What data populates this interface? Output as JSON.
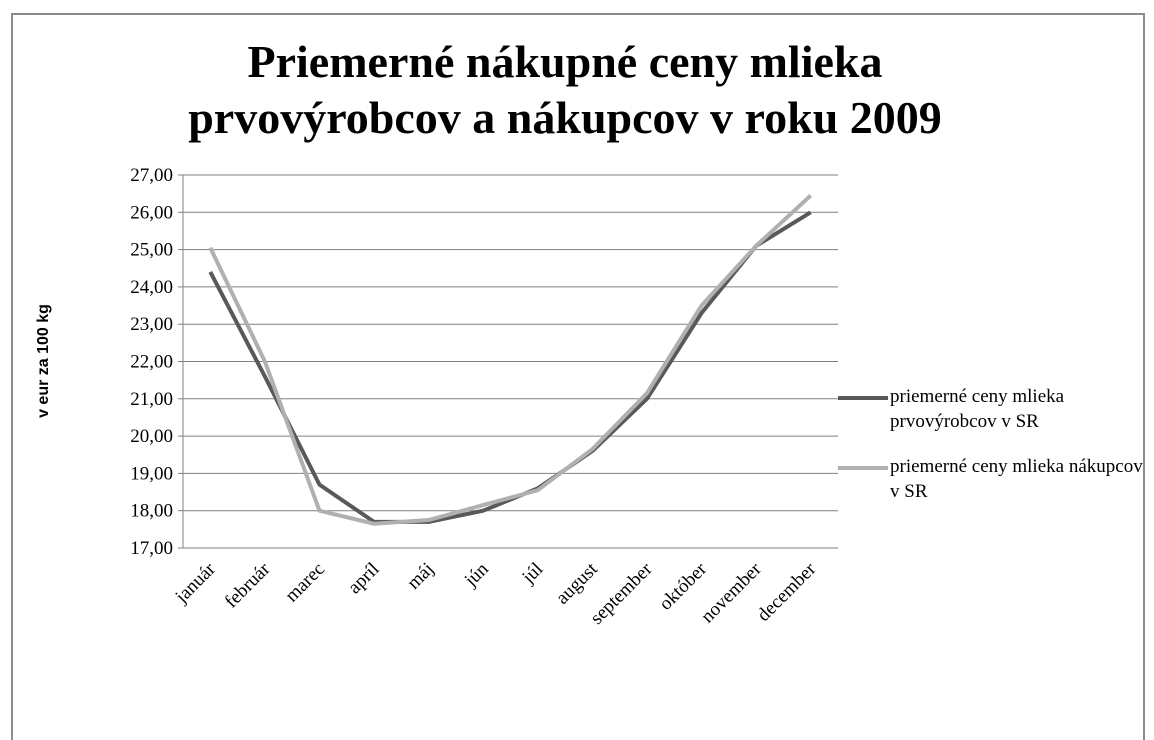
{
  "chart_data": {
    "type": "line",
    "title": "Priemerné nákupné ceny mlieka prvovýrobcov a nákupcov v roku 2009",
    "y_axis_label": "v eur za 100 kg",
    "categories": [
      "január",
      "február",
      "marec",
      "apríl",
      "máj",
      "jún",
      "júl",
      "august",
      "september",
      "október",
      "november",
      "december"
    ],
    "series": [
      {
        "name": "priemerné ceny mlieka prvovýrobcov v SR",
        "color": "#595959",
        "values": [
          24.4,
          21.6,
          18.7,
          17.7,
          17.7,
          18.0,
          18.6,
          19.6,
          21.0,
          23.3,
          25.1,
          26.0
        ]
      },
      {
        "name": "priemerné ceny mlieka nákupcov v SR",
        "color": "#b0b0b0",
        "values": [
          25.05,
          22.0,
          18.0,
          17.65,
          17.75,
          18.15,
          18.55,
          19.65,
          21.15,
          23.5,
          25.1,
          26.45
        ]
      }
    ],
    "ylim": [
      17,
      27
    ],
    "yticks": [
      {
        "value": 17,
        "label": "17,00"
      },
      {
        "value": 18,
        "label": "18,00"
      },
      {
        "value": 19,
        "label": "19,00"
      },
      {
        "value": 20,
        "label": "20,00"
      },
      {
        "value": 21,
        "label": "21,00"
      },
      {
        "value": 22,
        "label": "22,00"
      },
      {
        "value": 23,
        "label": "23,00"
      },
      {
        "value": 24,
        "label": "24,00"
      },
      {
        "value": 25,
        "label": "25,00"
      },
      {
        "value": 26,
        "label": "26,00"
      },
      {
        "value": 27,
        "label": "27,00"
      }
    ],
    "grid": true,
    "legend": "right"
  }
}
